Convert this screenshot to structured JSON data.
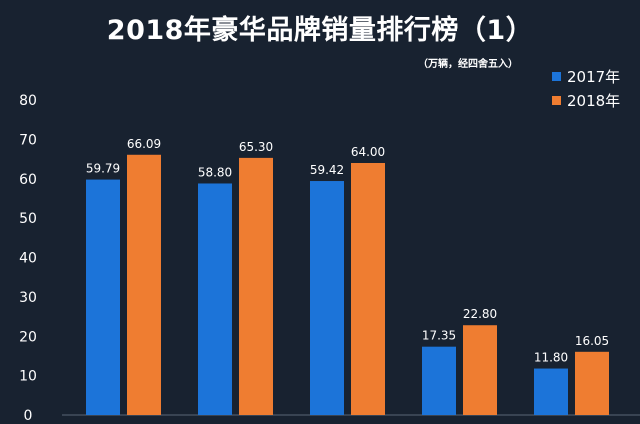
{
  "chart_data": {
    "type": "bar",
    "title": "2018年豪华品牌销量排行榜（1）",
    "subtitle": "（万辆，经四舍五入）",
    "categories": [
      "",
      "",
      "",
      "",
      ""
    ],
    "series": [
      {
        "name": "2017年",
        "color": "#1c74d9",
        "values": [
          59.79,
          58.8,
          59.42,
          17.35,
          11.8
        ],
        "labels": [
          "59.79",
          "58.80",
          "59.42",
          "17.35",
          "11.80"
        ]
      },
      {
        "name": "2018年",
        "color": "#ef7d31",
        "values": [
          66.09,
          65.3,
          64.0,
          22.8,
          16.05
        ],
        "labels": [
          "66.09",
          "65.30",
          "64.00",
          "22.80",
          "16.05"
        ]
      }
    ],
    "yticks": [
      "0",
      "10",
      "20",
      "30",
      "40",
      "50",
      "60",
      "70",
      "80"
    ],
    "ylim": [
      0,
      80
    ],
    "grid": false,
    "legend": "top-right"
  }
}
